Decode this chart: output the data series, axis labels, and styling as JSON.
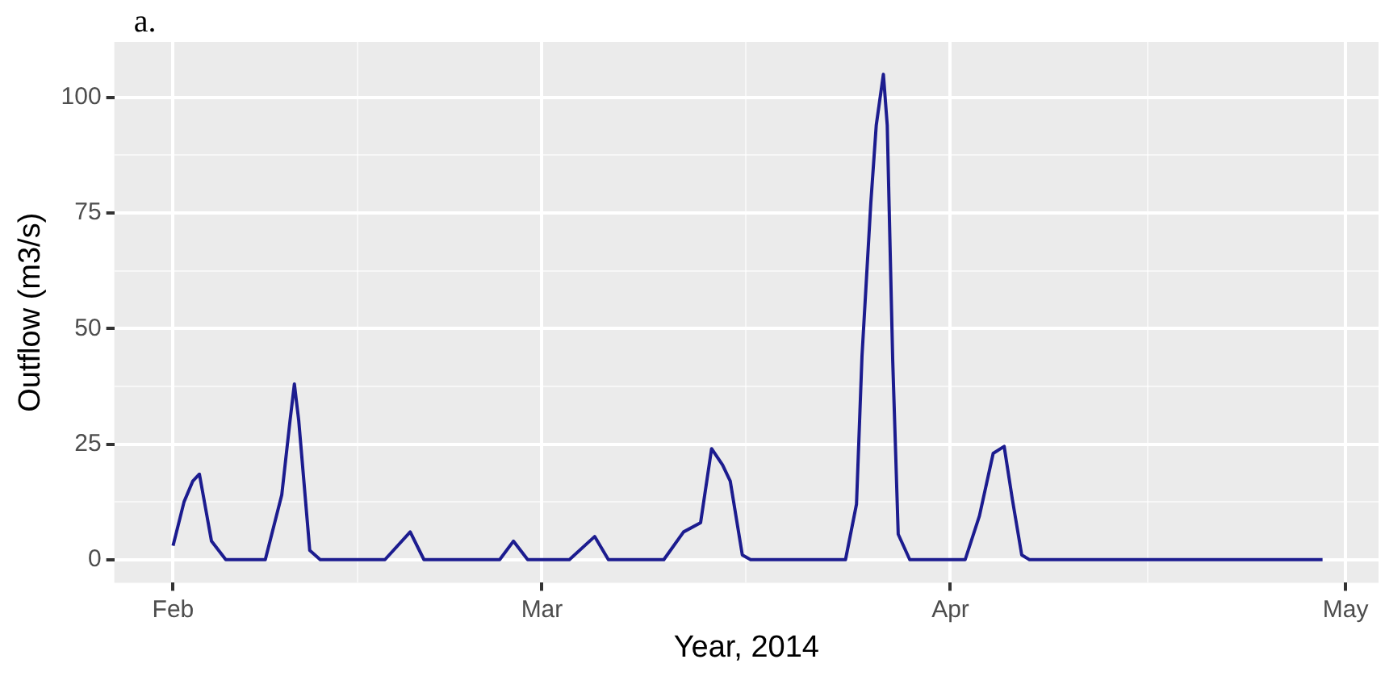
{
  "chart_data": {
    "type": "line",
    "title": "a.",
    "xlabel": "Year, 2014",
    "ylabel": "Outflow (m3/s)",
    "x": [
      "2014-02-01",
      "2014-02-01T20:00",
      "2014-02-02T12:00",
      "2014-02-03",
      "2014-02-03T22:00",
      "2014-02-05",
      "2014-02-08",
      "2014-02-09T06:00",
      "2014-02-09T21:00",
      "2014-02-10T05:00",
      "2014-02-10T13:00",
      "2014-02-11T09:00",
      "2014-02-12T04:00",
      "2014-02-17T02:00",
      "2014-02-19",
      "2014-02-20T01:00",
      "2014-02-25T19:00",
      "2014-02-26T20:00",
      "2014-02-27T22:00",
      "2014-03-03T02:00",
      "2014-03-05",
      "2014-03-06T01:00",
      "2014-03-10T06:00",
      "2014-03-11T18:00",
      "2014-03-13T01:00",
      "2014-03-13T21:00",
      "2014-03-14T17:00",
      "2014-03-15T07:00",
      "2014-03-16T05:00",
      "2014-03-16T20:00",
      "2014-03-24T01:00",
      "2014-03-24T21:00",
      "2014-03-25T07:00",
      "2014-03-25T23:00",
      "2014-03-26T09:00",
      "2014-03-26T22:00",
      "2014-03-27T05:00",
      "2014-03-27T15:00",
      "2014-03-28T01:00",
      "2014-03-28T22:00",
      "2014-04-02T03:00",
      "2014-04-03T05:00",
      "2014-04-04T06:00",
      "2014-04-05T02:00",
      "2014-04-05T17:00",
      "2014-04-06T10:00",
      "2014-04-07",
      "2014-04-29T06:00"
    ],
    "series": [
      {
        "color": "#1c1c8f",
        "values": [
          3,
          12.5,
          17,
          18.5,
          4,
          0,
          0,
          14,
          30,
          38,
          30,
          2,
          0,
          0,
          6,
          0,
          0,
          4,
          0,
          0,
          5,
          0,
          0,
          6,
          8,
          24,
          20.5,
          17,
          1,
          0,
          0,
          12,
          44,
          77,
          94,
          105,
          94,
          43,
          5.5,
          0,
          0,
          9.5,
          23,
          24.5,
          13,
          1,
          0,
          0
        ]
      }
    ],
    "xlim": [
      "2014-01-27T13:00",
      "2014-05-03T12:00"
    ],
    "xticks": [
      {
        "value": "2014-02-01",
        "label": "Feb"
      },
      {
        "value": "2014-02-15",
        "label": null
      },
      {
        "value": "2014-03-01",
        "label": "Mar"
      },
      {
        "value": "2014-03-16T12:00",
        "label": null
      },
      {
        "value": "2014-04-01",
        "label": "Apr"
      },
      {
        "value": "2014-04-16",
        "label": null
      },
      {
        "value": "2014-05-01",
        "label": "May"
      }
    ],
    "ylim": [
      -5,
      112
    ],
    "yticks": [
      0,
      {
        "value": 12.5,
        "label": null
      },
      25,
      {
        "value": 37.5,
        "label": null
      },
      50,
      {
        "value": 62.5,
        "label": null
      },
      75,
      {
        "value": 87.5,
        "label": null
      },
      100
    ],
    "grid": true,
    "legend": false,
    "marker": "none",
    "line_style": "solid"
  }
}
